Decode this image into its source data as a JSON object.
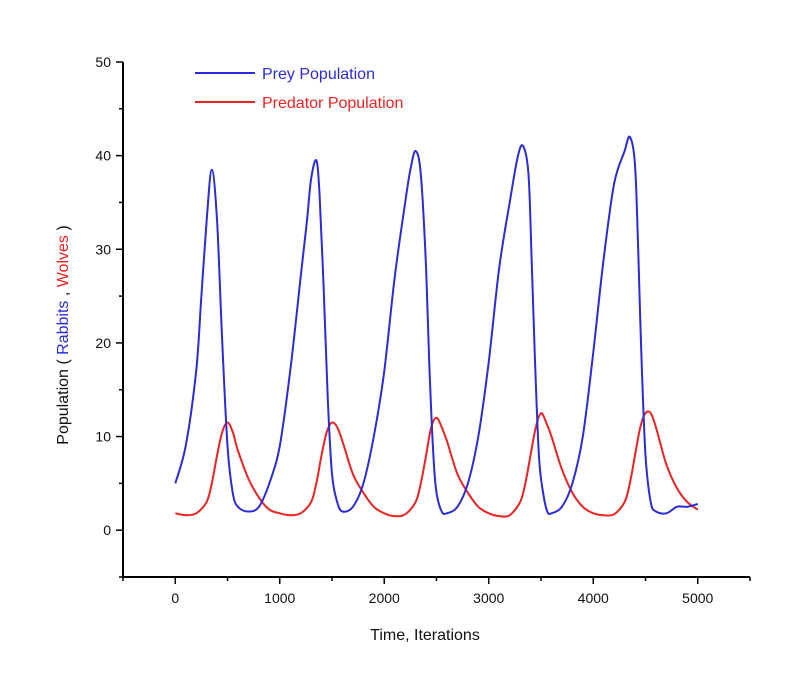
{
  "chart_data": {
    "type": "line",
    "title": "",
    "xlabel": "Time, Iterations",
    "ylabel": {
      "prefix": "Population ( ",
      "series1": "Rabbits",
      "separator": " , ",
      "series2": "Wolves",
      "suffix": " )"
    },
    "xlim": [
      -500,
      5500
    ],
    "ylim": [
      -5,
      50
    ],
    "x_ticks": [
      0,
      1000,
      2000,
      3000,
      4000,
      5000
    ],
    "y_ticks": [
      0,
      10,
      20,
      30,
      40,
      50
    ],
    "legend_position": "top-left",
    "series": [
      {
        "name": "Prey Population",
        "color": "#2b2bd9",
        "x": [
          0,
          100,
          200,
          250,
          300,
          350,
          400,
          450,
          500,
          550,
          600,
          700,
          800,
          900,
          1000,
          1100,
          1200,
          1260,
          1300,
          1350,
          1380,
          1420,
          1460,
          1500,
          1550,
          1600,
          1700,
          1800,
          1900,
          2000,
          2100,
          2200,
          2250,
          2300,
          2350,
          2400,
          2430,
          2470,
          2500,
          2550,
          2600,
          2700,
          2800,
          2900,
          3000,
          3100,
          3200,
          3280,
          3330,
          3380,
          3410,
          3440,
          3480,
          3520,
          3560,
          3600,
          3700,
          3800,
          3900,
          4000,
          4100,
          4200,
          4300,
          4350,
          4400,
          4430,
          4460,
          4500,
          4550,
          4600,
          4700,
          4800,
          4900,
          5000
        ],
        "values": [
          5,
          9,
          17,
          25,
          33,
          38.5,
          33,
          20,
          9,
          4,
          2.5,
          2,
          2.5,
          5,
          9,
          17,
          27,
          33,
          37.5,
          39.5,
          36,
          26,
          14,
          6,
          3,
          2,
          2.5,
          5,
          10,
          17,
          27,
          35,
          38.5,
          40.5,
          38,
          28,
          18,
          8,
          4,
          2,
          1.8,
          2.5,
          5,
          10,
          18,
          28,
          35,
          40,
          41,
          38,
          29,
          19,
          8,
          4,
          2,
          1.8,
          2.5,
          5,
          10,
          19,
          29,
          37,
          40.5,
          42,
          39,
          30,
          19,
          8,
          3,
          2,
          1.8,
          2.5,
          2.5,
          2.8
        ]
      },
      {
        "name": "Predator Population",
        "color": "#ee2222",
        "x": [
          0,
          100,
          200,
          300,
          350,
          400,
          450,
          500,
          550,
          600,
          700,
          800,
          900,
          1000,
          1100,
          1200,
          1300,
          1350,
          1400,
          1450,
          1500,
          1550,
          1600,
          1700,
          1800,
          1900,
          2000,
          2100,
          2200,
          2300,
          2350,
          2400,
          2450,
          2500,
          2550,
          2600,
          2700,
          2800,
          2900,
          3000,
          3100,
          3200,
          3300,
          3350,
          3400,
          3450,
          3500,
          3550,
          3600,
          3700,
          3800,
          3900,
          4000,
          4100,
          4200,
          4300,
          4350,
          4400,
          4450,
          4500,
          4550,
          4600,
          4700,
          4800,
          4900,
          5000
        ],
        "values": [
          1.8,
          1.6,
          1.8,
          3,
          5,
          8,
          10.5,
          11.5,
          10.5,
          8.5,
          5.5,
          3.5,
          2.2,
          1.8,
          1.6,
          1.8,
          3,
          5,
          8,
          10.5,
          11.5,
          11,
          9.5,
          6,
          4,
          2.5,
          1.8,
          1.5,
          1.7,
          3,
          5,
          8,
          11,
          12,
          11,
          9.5,
          6,
          4,
          2.5,
          1.8,
          1.5,
          1.6,
          3,
          5,
          8,
          11,
          12.5,
          11.5,
          10,
          6.5,
          4,
          2.5,
          1.8,
          1.6,
          1.7,
          3,
          5,
          8,
          11,
          12.5,
          12.5,
          11,
          7,
          4.5,
          3,
          2.2
        ]
      }
    ]
  }
}
